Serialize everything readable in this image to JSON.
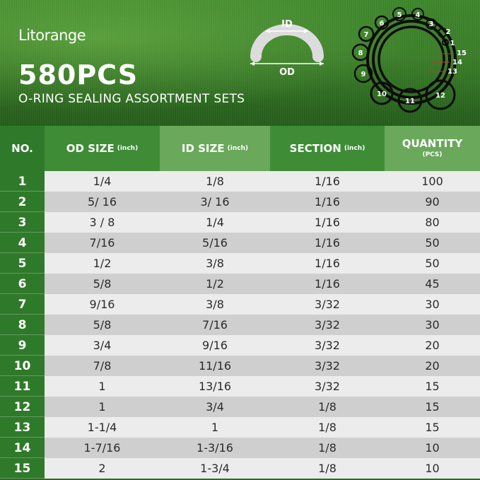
{
  "header": {
    "brand": "Litorange",
    "count": "580PCS",
    "subtitle": "O-RING SEALING ASSORTMENT SETS",
    "diagram": {
      "id_label": "ID",
      "od_label": "OD"
    },
    "ring_labels": [
      "1",
      "2",
      "3",
      "4",
      "5",
      "6",
      "7",
      "8",
      "9",
      "10",
      "11",
      "12",
      "13",
      "14",
      "15"
    ]
  },
  "table": {
    "columns": [
      {
        "label": "NO.",
        "unit": ""
      },
      {
        "label": "OD SIZE",
        "unit": "(inch)"
      },
      {
        "label": "ID SIZE",
        "unit": "(inch)"
      },
      {
        "label": "SECTION",
        "unit": "(inch)"
      },
      {
        "label": "QUANTITY",
        "unit": "(PCS)"
      }
    ],
    "rows": [
      {
        "no": "1",
        "od": "1/4",
        "id": "1/8",
        "section": "1/16",
        "qty": "100"
      },
      {
        "no": "2",
        "od": "5/ 16",
        "id": "3/ 16",
        "section": "1/16",
        "qty": "90"
      },
      {
        "no": "3",
        "od": "3 / 8",
        "id": "1/4",
        "section": "1/16",
        "qty": "80"
      },
      {
        "no": "4",
        "od": "7/16",
        "id": "5/16",
        "section": "1/16",
        "qty": "50"
      },
      {
        "no": "5",
        "od": "1/2",
        "id": "3/8",
        "section": "1/16",
        "qty": "50"
      },
      {
        "no": "6",
        "od": "5/8",
        "id": "1/2",
        "section": "1/16",
        "qty": "45"
      },
      {
        "no": "7",
        "od": "9/16",
        "id": "3/8",
        "section": "3/32",
        "qty": "30"
      },
      {
        "no": "8",
        "od": "5/8",
        "id": "7/16",
        "section": "3/32",
        "qty": "30"
      },
      {
        "no": "9",
        "od": "3/4",
        "id": "9/16",
        "section": "3/32",
        "qty": "20"
      },
      {
        "no": "10",
        "od": "7/8",
        "id": "11/16",
        "section": "3/32",
        "qty": "20"
      },
      {
        "no": "11",
        "od": "1",
        "id": "13/16",
        "section": "3/32",
        "qty": "15"
      },
      {
        "no": "12",
        "od": "1",
        "id": "3/4",
        "section": "1/8",
        "qty": "15"
      },
      {
        "no": "13",
        "od": "1-1/4",
        "id": "1",
        "section": "1/8",
        "qty": "15"
      },
      {
        "no": "14",
        "od": "1-7/16",
        "id": "1-3/16",
        "section": "1/8",
        "qty": "10"
      },
      {
        "no": "15",
        "od": "2",
        "id": "1-3/4",
        "section": "1/8",
        "qty": "10"
      }
    ]
  }
}
